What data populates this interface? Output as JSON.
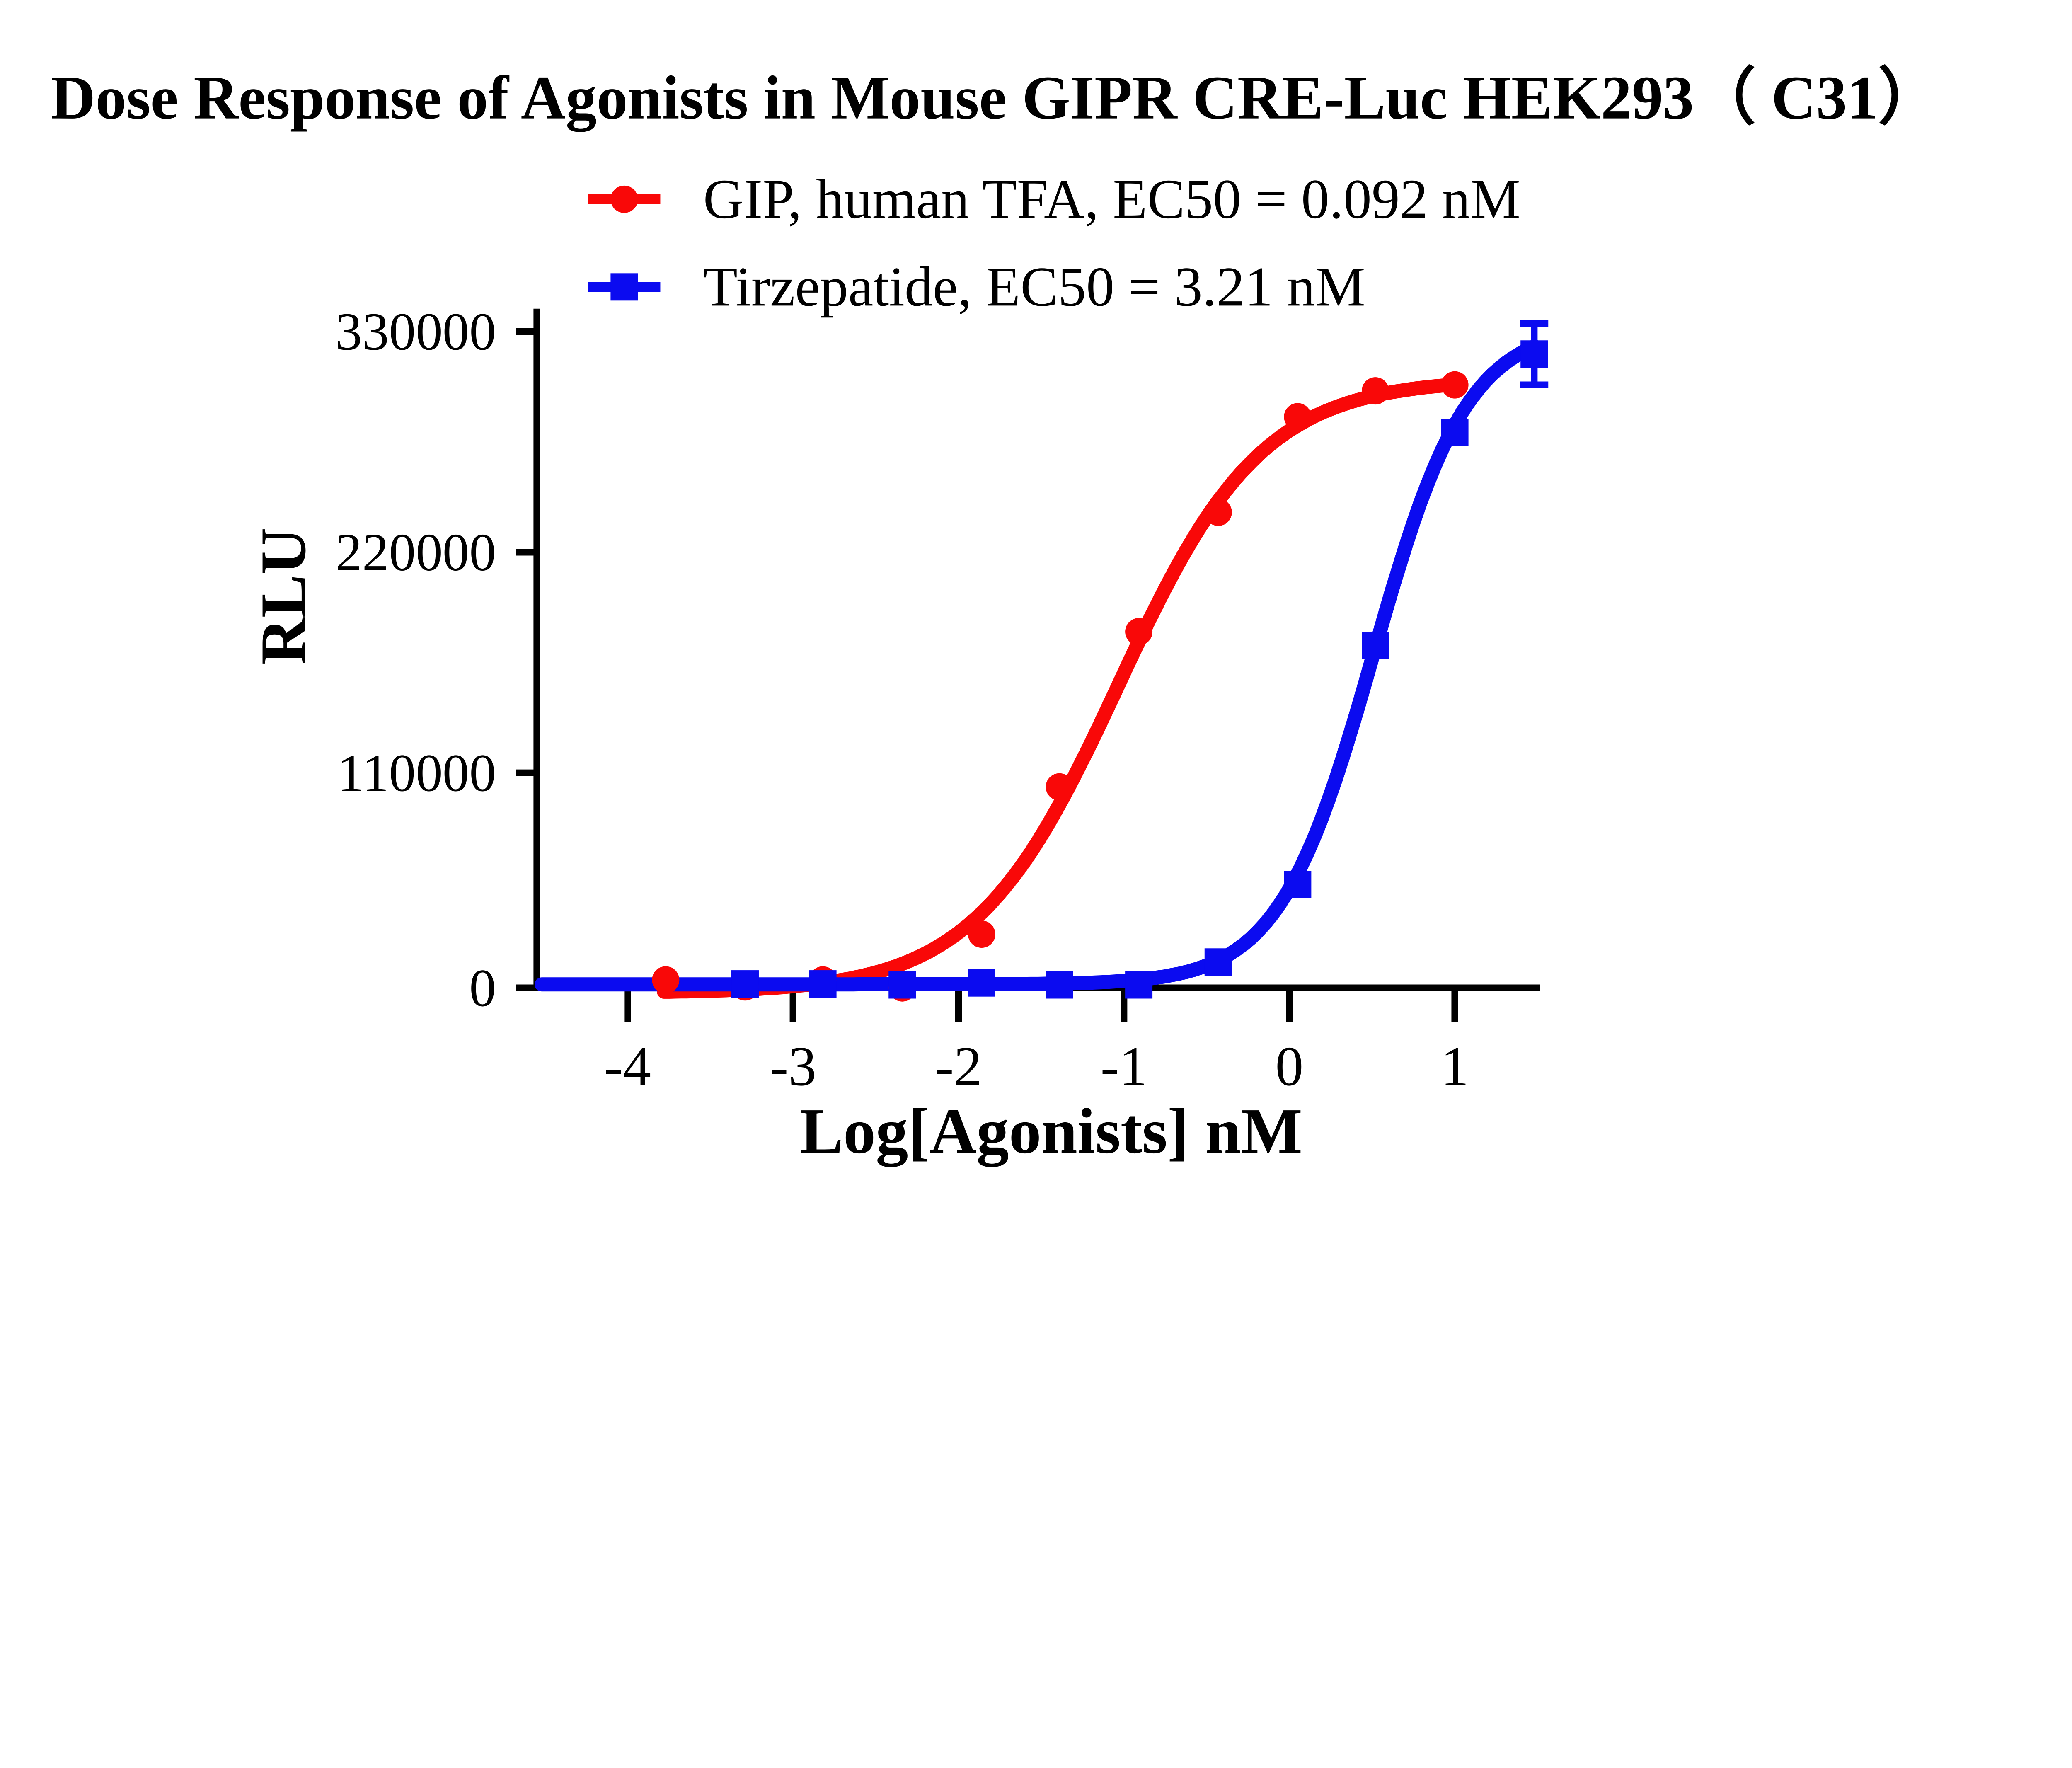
{
  "title": "Dose Response of Agonists in Mouse GIPR CRE-Luc HEK293（ C31）",
  "colors": {
    "gip": "#F90808",
    "tirzepatide": "#0B0BF0",
    "axis": "#000000",
    "background": "#FFFFFF"
  },
  "legend": [
    {
      "series": "gip",
      "marker": "circle-icon",
      "label": "GIP, human TFA, EC50 = 0.092 nM"
    },
    {
      "series": "tirzepatide",
      "marker": "square-icon",
      "label": "Tirzepatide, EC50 = 3.21 nM"
    }
  ],
  "axes": {
    "x": {
      "title": "Log[Agonists] nM",
      "tick_labels": [
        "-4",
        "-3",
        "-2",
        "-1",
        "0",
        "1"
      ]
    },
    "y": {
      "title": "RLU",
      "tick_labels": [
        "330000",
        "220000",
        "110000",
        "0"
      ]
    }
  },
  "chart_data": {
    "type": "scatter",
    "subtype": "dose-response-sigmoid-fit",
    "title": "Dose Response of Agonists in Mouse GIPR CRE-Luc HEK293（ C31）",
    "xlabel": "Log[Agonists] nM",
    "ylabel": "RLU",
    "xlim": [
      -4.55,
      1.52
    ],
    "ylim": [
      0,
      330000
    ],
    "x_ticks": [
      -4,
      -3,
      -2,
      -1,
      0,
      1
    ],
    "y_ticks": [
      0,
      110000,
      220000,
      330000
    ],
    "grid": false,
    "legend_position": "top-center",
    "series": [
      {
        "name": "GIP, human TFA",
        "ec50_label": "EC50 = 0.092 nM",
        "ec50_nM": 0.092,
        "color": "#F90808",
        "marker": "circle",
        "points": [
          {
            "x": -3.77,
            "y": 4000
          },
          {
            "x": -3.29,
            "y": 500
          },
          {
            "x": -2.82,
            "y": 4000
          },
          {
            "x": -2.34,
            "y": 0
          },
          {
            "x": -1.86,
            "y": 27000
          },
          {
            "x": -1.39,
            "y": 101000
          },
          {
            "x": -0.91,
            "y": 179000
          },
          {
            "x": -0.43,
            "y": 239000
          },
          {
            "x": 0.05,
            "y": 287000
          },
          {
            "x": 0.52,
            "y": 300000
          },
          {
            "x": 1.0,
            "y": 303000
          }
        ],
        "fit": {
          "bottom": -2500,
          "top": 306000,
          "logec50": -1.036,
          "hill": 1.0,
          "draw_range": [
            -3.78,
            1.0
          ]
        }
      },
      {
        "name": "Tirzepatide",
        "ec50_label": "EC50 = 3.21 nM",
        "ec50_nM": 3.21,
        "color": "#0B0BF0",
        "marker": "square",
        "points": [
          {
            "x": -3.29,
            "y": 2000
          },
          {
            "x": -2.82,
            "y": 2000
          },
          {
            "x": -2.34,
            "y": 1500
          },
          {
            "x": -1.86,
            "y": 2500
          },
          {
            "x": -1.39,
            "y": 1500
          },
          {
            "x": -0.91,
            "y": 1500
          },
          {
            "x": -0.43,
            "y": 13000
          },
          {
            "x": 0.05,
            "y": 52000
          },
          {
            "x": 0.52,
            "y": 172000
          },
          {
            "x": 1.0,
            "y": 279000
          },
          {
            "x": 1.48,
            "y": 318500,
            "sd": 15500
          }
        ],
        "fit": {
          "bottom": 1800,
          "top": 333000,
          "logec50": 0.507,
          "hill": 1.52,
          "draw_range": [
            -4.52,
            1.48
          ]
        }
      }
    ]
  }
}
